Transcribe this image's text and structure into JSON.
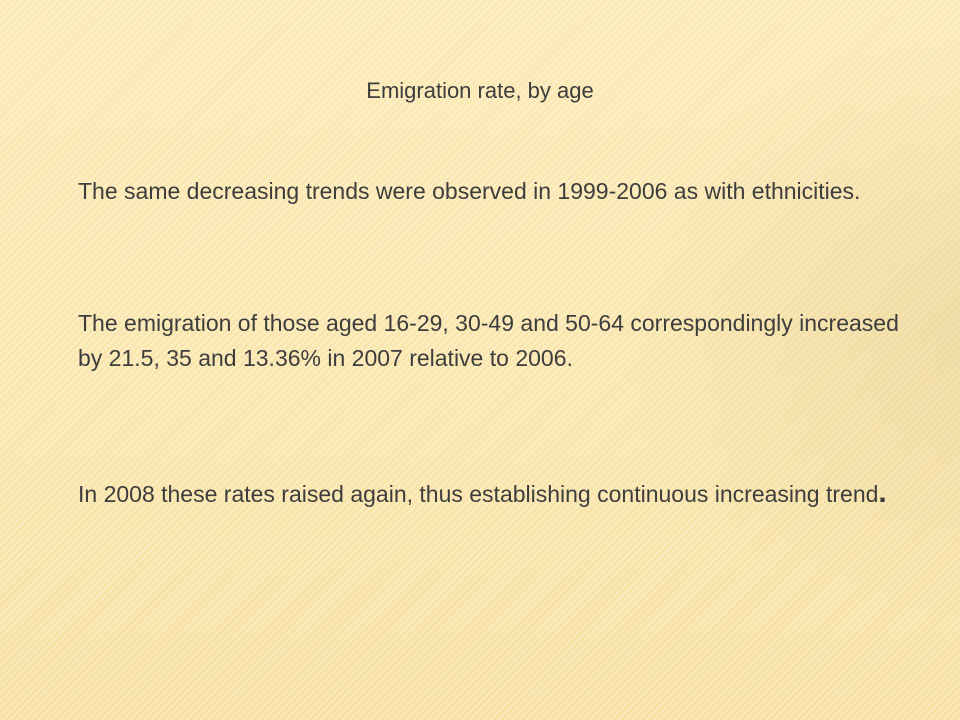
{
  "slide": {
    "title": "Emigration rate, by age",
    "paragraphs": [
      {
        "text": "The same decreasing trends were observed in 1999-2006 as with ethnicities."
      },
      {
        "text": "The emigration of those aged 16-29, 30-49 and 50-64 correspondingly increased by 21.5, 35 and 13.36% in 2007 relative to 2006."
      },
      {
        "text": "In 2008 these rates raised again, thus establishing continuous increasing trend",
        "end": "."
      }
    ]
  }
}
